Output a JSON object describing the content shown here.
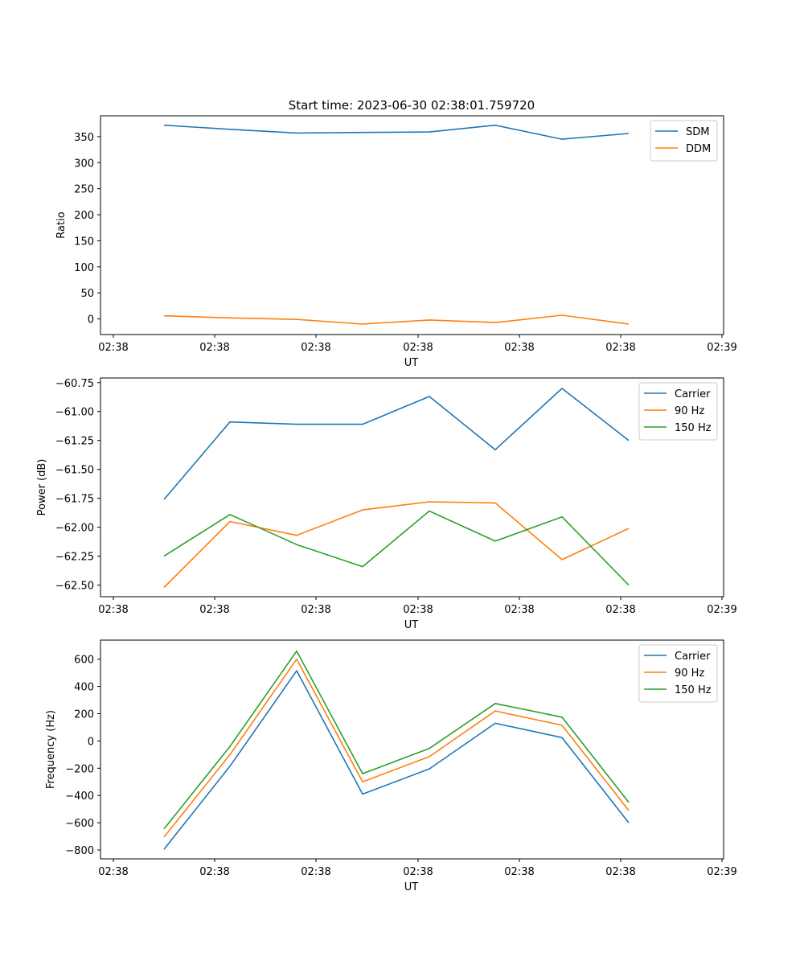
{
  "figure": {
    "title": "Start time: 2023-06-30 02:38:01.759720"
  },
  "chart_data": [
    {
      "type": "line",
      "title": "Start time: 2023-06-30 02:38:01.759720",
      "xlabel": "UT",
      "ylabel": "Ratio",
      "x_tick_labels": [
        "02:38",
        "02:38",
        "02:38",
        "02:38",
        "02:38",
        "02:38",
        "02:39"
      ],
      "y_ticks": [
        0,
        50,
        100,
        150,
        200,
        250,
        300,
        350
      ],
      "ylim": [
        -30,
        390
      ],
      "grid": false,
      "legend_position": "top-right",
      "series": [
        {
          "name": "SDM",
          "color": "#1f77b4",
          "values": [
            372,
            364,
            357,
            358,
            359,
            372,
            345,
            356
          ]
        },
        {
          "name": "DDM",
          "color": "#ff7f0e",
          "values": [
            6,
            2,
            -1,
            -10,
            -2,
            -7,
            7,
            -10
          ]
        }
      ]
    },
    {
      "type": "line",
      "title": "",
      "xlabel": "UT",
      "ylabel": "Power (dB)",
      "x_tick_labels": [
        "02:38",
        "02:38",
        "02:38",
        "02:38",
        "02:38",
        "02:38",
        "02:39"
      ],
      "y_ticks": [
        -62.5,
        -62.25,
        -62.0,
        -61.75,
        -61.5,
        -61.25,
        -61.0,
        -60.75
      ],
      "y_tick_labels": [
        "−62.50",
        "−62.25",
        "−62.00",
        "−61.75",
        "−61.50",
        "−61.25",
        "−61.00",
        "−60.75"
      ],
      "ylim": [
        -62.6,
        -60.71
      ],
      "grid": false,
      "legend_position": "top-right",
      "series": [
        {
          "name": "Carrier",
          "color": "#1f77b4",
          "values": [
            -61.76,
            -61.09,
            -61.11,
            -61.11,
            -60.87,
            -61.33,
            -60.8,
            -61.25
          ]
        },
        {
          "name": "90 Hz",
          "color": "#ff7f0e",
          "values": [
            -62.52,
            -61.95,
            -62.07,
            -61.85,
            -61.78,
            -61.79,
            -62.28,
            -62.01
          ]
        },
        {
          "name": "150 Hz",
          "color": "#2ca02c",
          "values": [
            -62.25,
            -61.89,
            -62.15,
            -62.34,
            -61.86,
            -62.12,
            -61.91,
            -62.5
          ]
        }
      ]
    },
    {
      "type": "line",
      "title": "",
      "xlabel": "UT",
      "ylabel": "Frequency (Hz)",
      "x_tick_labels": [
        "02:38",
        "02:38",
        "02:38",
        "02:38",
        "02:38",
        "02:38",
        "02:39"
      ],
      "y_ticks": [
        -800,
        -600,
        -400,
        -200,
        0,
        200,
        400,
        600
      ],
      "y_tick_labels": [
        "−800",
        "−600",
        "−400",
        "−200",
        "0",
        "200",
        "400",
        "600"
      ],
      "ylim": [
        -865,
        740
      ],
      "grid": false,
      "legend_position": "top-right",
      "series": [
        {
          "name": "Carrier",
          "color": "#1f77b4",
          "values": [
            -795,
            -185,
            515,
            -390,
            -205,
            130,
            25,
            -600
          ]
        },
        {
          "name": "90 Hz",
          "color": "#ff7f0e",
          "values": [
            -705,
            -100,
            600,
            -300,
            -115,
            220,
            115,
            -510
          ]
        },
        {
          "name": "150 Hz",
          "color": "#2ca02c",
          "values": [
            -645,
            -40,
            660,
            -240,
            -55,
            275,
            175,
            -450
          ]
        }
      ]
    }
  ]
}
